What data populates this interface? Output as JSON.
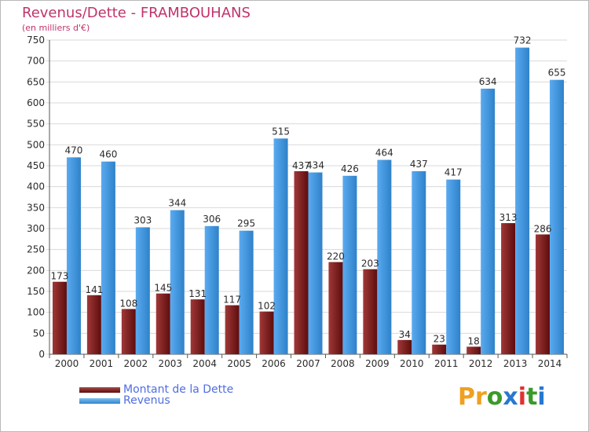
{
  "chart_data": {
    "type": "bar",
    "title": "Revenus/Dette - FRAMBOUHANS",
    "subtitle": "(en milliers d'€)",
    "categories": [
      "2000",
      "2001",
      "2002",
      "2003",
      "2004",
      "2005",
      "2006",
      "2007",
      "2008",
      "2009",
      "2010",
      "2011",
      "2012",
      "2013",
      "2014"
    ],
    "series": [
      {
        "name": "Montant de la Dette",
        "color": "#7a1a1a",
        "values": [
          173,
          141,
          108,
          145,
          131,
          117,
          102,
          437,
          220,
          203,
          34,
          23,
          18,
          313,
          286
        ]
      },
      {
        "name": "Revenus",
        "color": "#3d92d8",
        "values": [
          470,
          460,
          303,
          344,
          306,
          295,
          515,
          434,
          426,
          464,
          437,
          417,
          634,
          732,
          655
        ]
      }
    ],
    "ylim": [
      0,
      750
    ],
    "yticks": [
      0,
      50,
      100,
      150,
      200,
      250,
      300,
      350,
      400,
      450,
      500,
      550,
      600,
      650,
      700,
      750
    ],
    "grid": true,
    "legend_position": "bottom-left"
  },
  "logo": {
    "text": "Proxiti"
  }
}
